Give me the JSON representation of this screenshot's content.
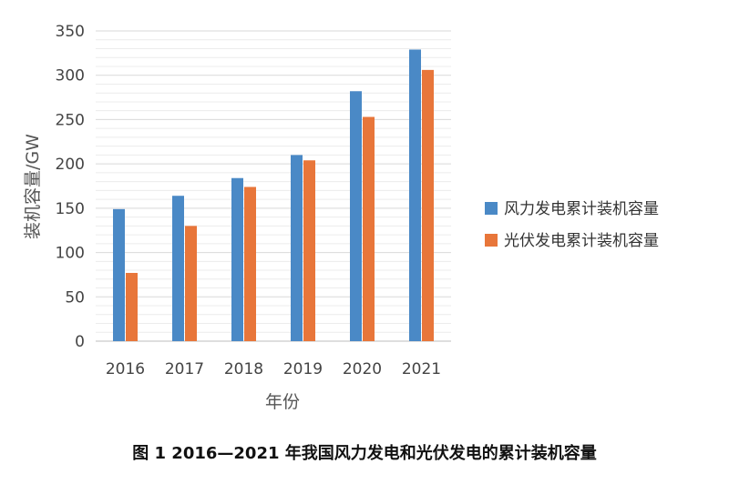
{
  "chart_data": {
    "type": "bar",
    "categories": [
      "2016",
      "2017",
      "2018",
      "2019",
      "2020",
      "2021"
    ],
    "series": [
      {
        "name": "风力发电累计装机容量",
        "color": "#4a89c6",
        "values": [
          149,
          164,
          184,
          210,
          282,
          329
        ]
      },
      {
        "name": "光伏发电累计装机容量",
        "color": "#e8763a",
        "values": [
          77,
          130,
          174,
          204,
          253,
          306
        ]
      }
    ],
    "title": "图 1  2016—2021 年我国风力发电和光伏发电的累计装机容量",
    "xlabel": "年份",
    "ylabel": "装机容量/GW",
    "ylim": [
      0,
      350
    ],
    "yticks": [
      0,
      50,
      100,
      150,
      200,
      250,
      300,
      350
    ],
    "grid": true,
    "legend_position": "right"
  }
}
